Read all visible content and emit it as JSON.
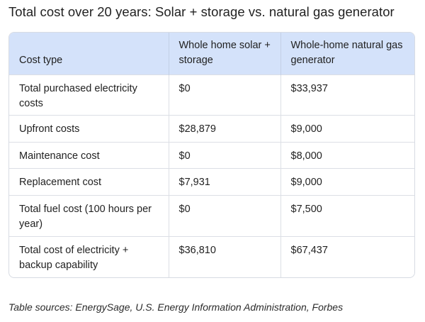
{
  "title": "Total cost over 20 years: Solar + storage vs. natural gas generator",
  "table": {
    "headers": [
      "Cost type",
      "Whole home solar + storage",
      "Whole-home natural gas generator"
    ],
    "rows": [
      [
        "Total purchased electricity costs",
        "$0",
        "$33,937"
      ],
      [
        "Upfront costs",
        "$28,879",
        "$9,000"
      ],
      [
        "Maintenance cost",
        "$0",
        "$8,000"
      ],
      [
        "Replacement cost",
        "$7,931",
        "$9,000"
      ],
      [
        "Total fuel cost (100 hours per year)",
        "$0",
        "$7,500"
      ],
      [
        "Total cost of electricity + backup capability",
        "$36,810",
        "$67,437"
      ]
    ]
  },
  "sources": "Table sources: EnergySage, U.S. Energy Information Administration, Forbes",
  "colors": {
    "header_background": "#d4e2fa",
    "border": "#d7dbe3"
  }
}
